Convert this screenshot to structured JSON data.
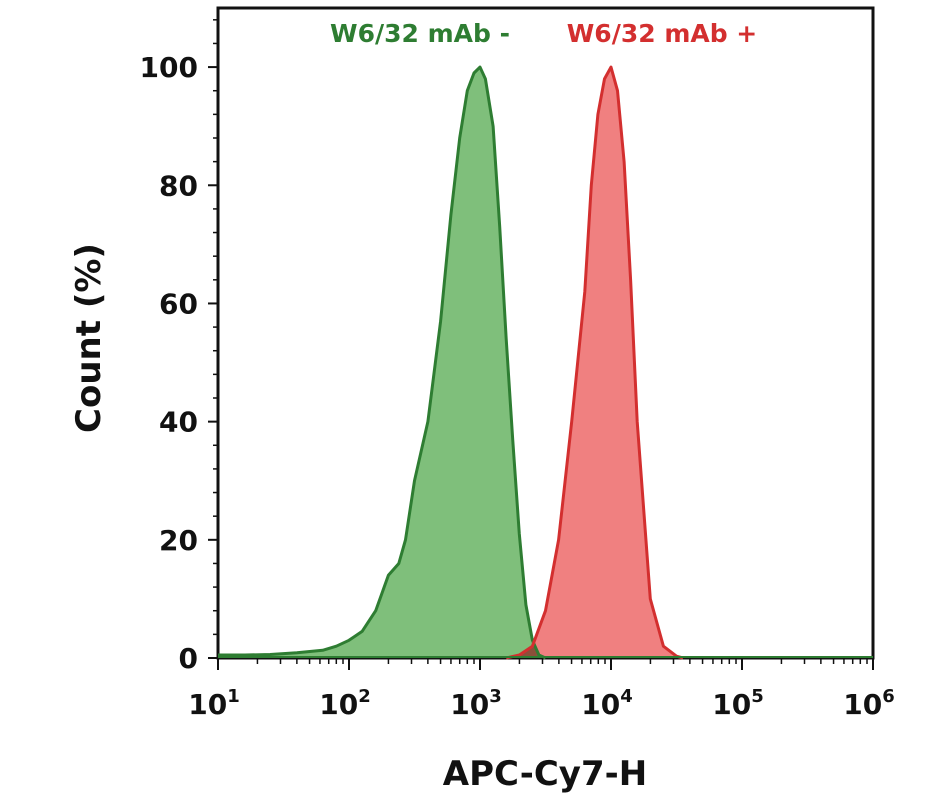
{
  "chart_data": {
    "type": "area",
    "title": "",
    "xlabel": "APC-Cy7-H",
    "ylabel": "Count (%)",
    "x_scale": "log",
    "xlim": [
      10,
      1000000
    ],
    "ylim": [
      0,
      110
    ],
    "x_ticks": [
      {
        "base": "10",
        "exp": "1"
      },
      {
        "base": "10",
        "exp": "2"
      },
      {
        "base": "10",
        "exp": "3"
      },
      {
        "base": "10",
        "exp": "4"
      },
      {
        "base": "10",
        "exp": "5"
      },
      {
        "base": "10",
        "exp": "6"
      }
    ],
    "y_ticks": [
      "0",
      "20",
      "40",
      "60",
      "80",
      "100"
    ],
    "grid": false,
    "legend": "top",
    "series": [
      {
        "name": "W6/32 mAb -",
        "color": "#2e7d32",
        "fill": "#7fbf7b",
        "x": [
          10,
          16,
          25,
          40,
          63,
          80,
          100,
          126,
          160,
          200,
          240,
          270,
          316,
          400,
          500,
          600,
          700,
          800,
          900,
          1000,
          1100,
          1259,
          1413,
          1585,
          1778,
          1995,
          2239,
          2512,
          2818,
          3162
        ],
        "y": [
          0.5,
          0.5,
          0.6,
          0.9,
          1.3,
          2,
          3,
          4.5,
          8,
          14,
          16,
          20,
          30,
          40,
          57,
          75,
          88,
          96,
          99,
          100,
          98,
          90,
          73,
          54,
          37,
          21,
          9,
          3,
          0.5,
          0
        ]
      },
      {
        "name": "W6/32 mAb +",
        "color": "#d32f2f",
        "fill": "#f08080",
        "x": [
          1585,
          2000,
          2512,
          3162,
          3981,
          5012,
          6310,
          7079,
          7943,
          8913,
          10000,
          11220,
          12589,
          14125,
          15849,
          19953,
          25119,
          31623,
          35481
        ],
        "y": [
          0,
          0.5,
          2,
          8,
          20,
          40,
          62,
          80,
          92,
          98,
          100,
          96,
          84,
          64,
          40,
          10,
          2,
          0.3,
          0
        ]
      }
    ],
    "overlap_color": "#8b4f3a"
  }
}
